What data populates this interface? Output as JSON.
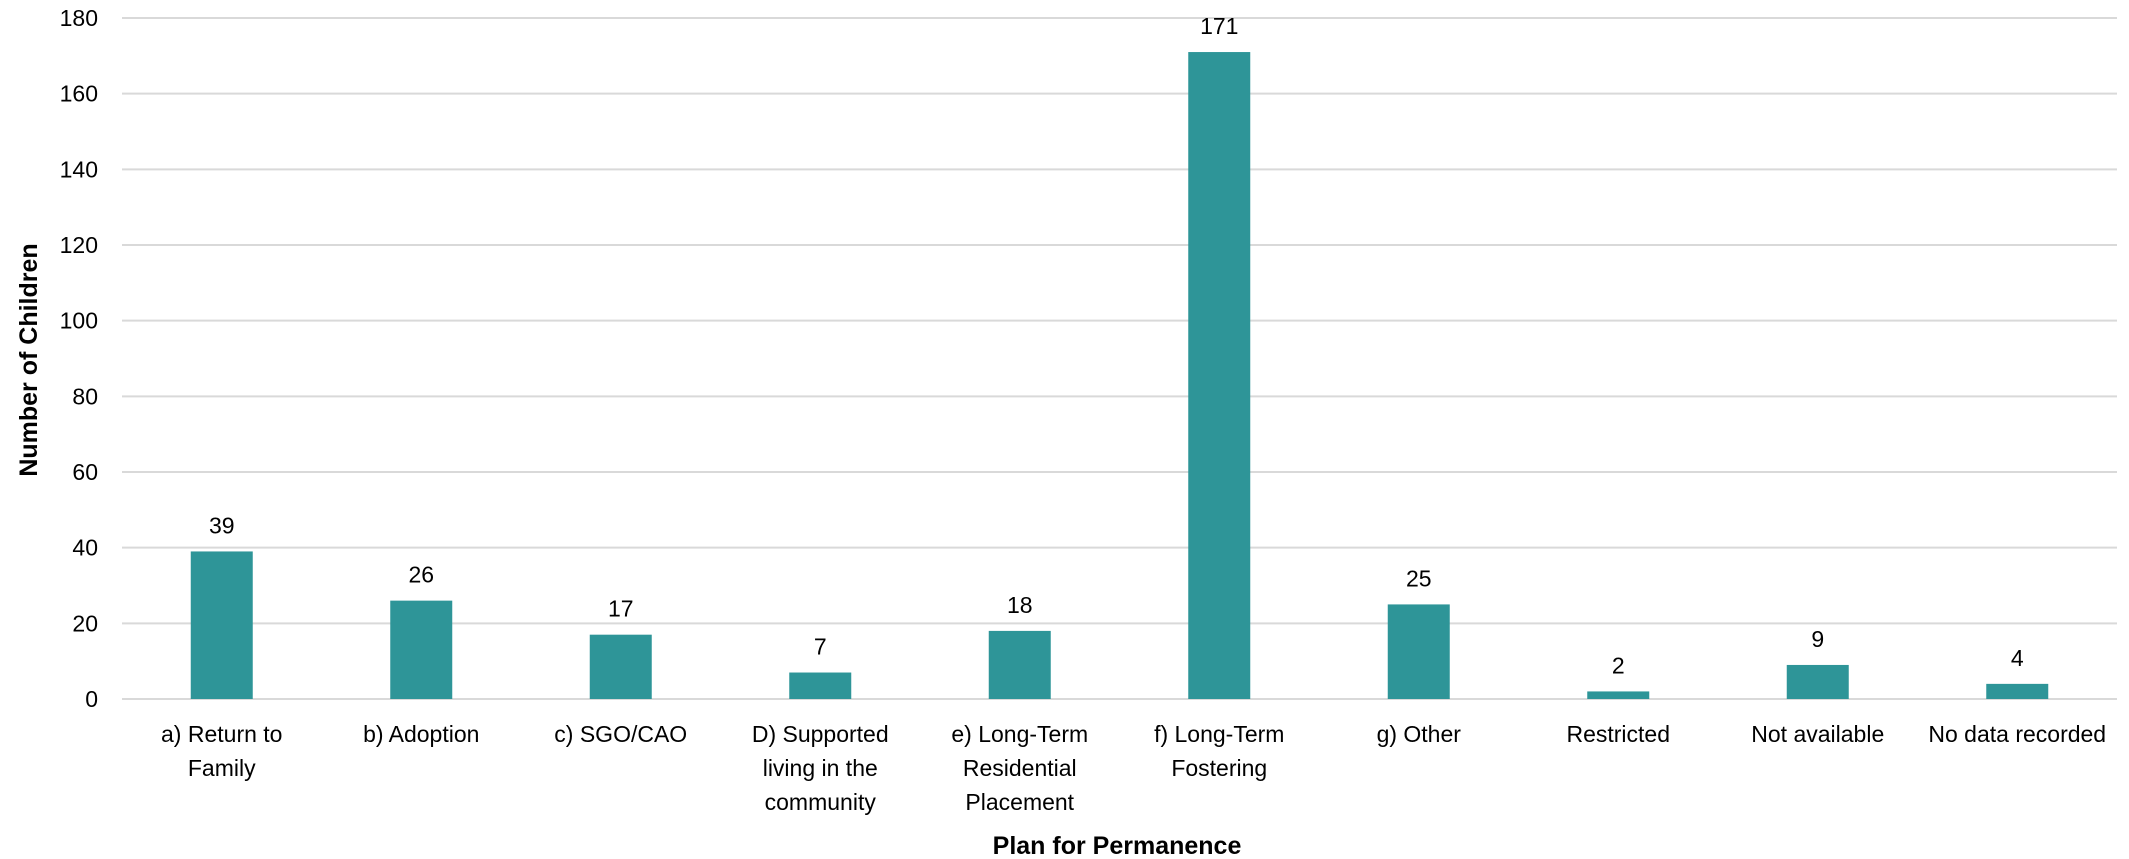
{
  "chart_data": {
    "type": "bar",
    "title": "",
    "xlabel": "Plan for Permanence",
    "ylabel": "Number of Children",
    "ylim": [
      0,
      180
    ],
    "yticks": [
      0,
      20,
      40,
      60,
      80,
      100,
      120,
      140,
      160,
      180
    ],
    "grid": true,
    "bar_color": "#2e9598",
    "categories": [
      [
        "a) Return to",
        "Family"
      ],
      [
        "b) Adoption"
      ],
      [
        "c) SGO/CAO"
      ],
      [
        "D) Supported",
        "living in the",
        "community"
      ],
      [
        "e) Long-Term",
        "Residential",
        "Placement"
      ],
      [
        "f) Long-Term",
        "Fostering"
      ],
      [
        "g) Other"
      ],
      [
        "Restricted"
      ],
      [
        "Not available"
      ],
      [
        "No data recorded"
      ]
    ],
    "values": [
      39,
      26,
      17,
      7,
      18,
      171,
      25,
      2,
      9,
      4
    ]
  }
}
